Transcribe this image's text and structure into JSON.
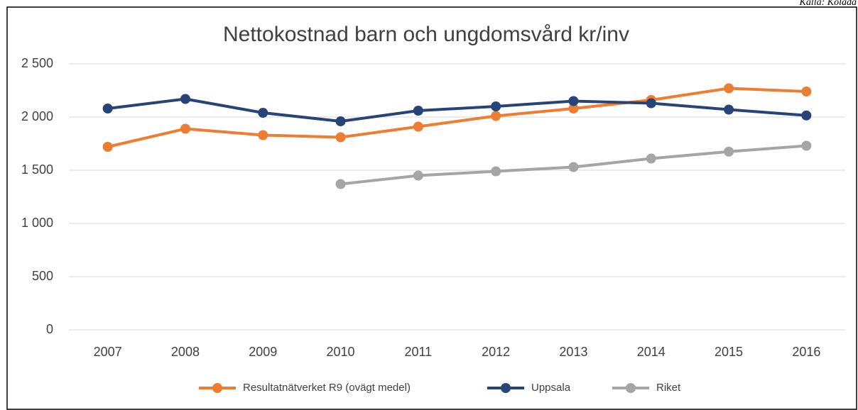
{
  "chart_data": {
    "type": "line",
    "source": "Källa: Kolada",
    "title": "Nettokostnad barn och ungdomsvård kr/inv",
    "categories": [
      "2007",
      "2008",
      "2009",
      "2010",
      "2011",
      "2012",
      "2013",
      "2014",
      "2015",
      "2016"
    ],
    "series": [
      {
        "name": "Resultatnätverket R9 (ovägt medel)",
        "color": "#ed7d31",
        "values": [
          1720,
          1890,
          1830,
          1810,
          1910,
          2010,
          2080,
          2160,
          2270,
          2240
        ]
      },
      {
        "name": "Uppsala",
        "color": "#264478",
        "values": [
          2080,
          2170,
          2040,
          1960,
          2060,
          2100,
          2150,
          2130,
          2070,
          2015
        ]
      },
      {
        "name": "Riket",
        "color": "#a5a5a5",
        "values": [
          null,
          null,
          null,
          1370,
          1450,
          1490,
          1530,
          1610,
          1675,
          1730
        ]
      }
    ],
    "ylim": [
      0,
      2500
    ],
    "yticks": [
      0,
      500,
      {
        "value": 1000,
        "label": "1 000"
      },
      {
        "value": 1500,
        "label": "1 500"
      },
      {
        "value": 2000,
        "label": "2 000"
      },
      {
        "value": 2500,
        "label": "2 500"
      }
    ],
    "grid": true,
    "legend": "bottom"
  }
}
